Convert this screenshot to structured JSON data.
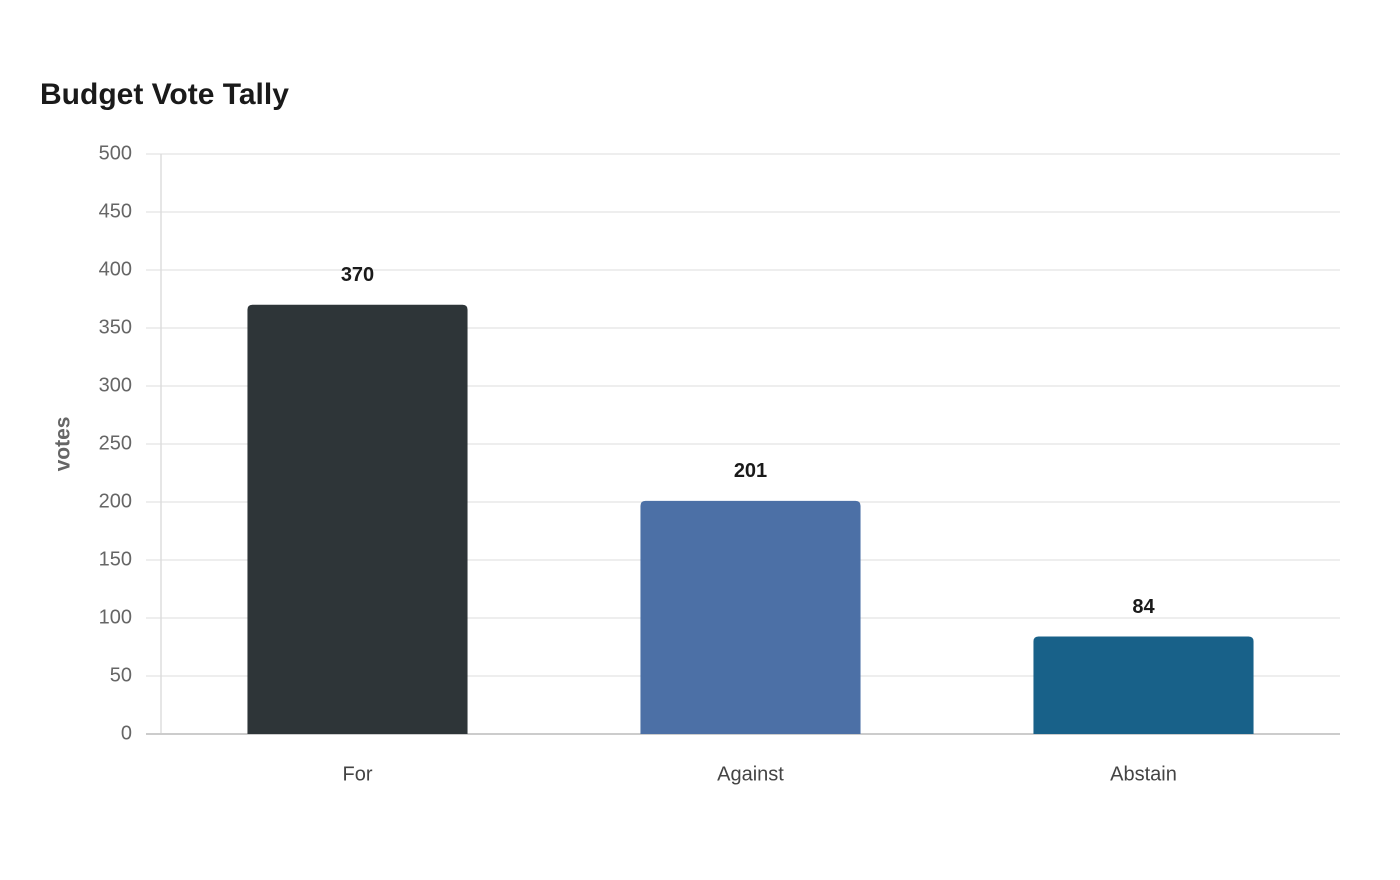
{
  "chart_data": {
    "type": "bar",
    "title": "Budget Vote Tally",
    "y_label": "votes",
    "categories": [
      "For",
      "Against",
      "Abstain"
    ],
    "values": [
      370,
      201,
      84
    ],
    "colors": [
      "#2e3538",
      "#4c70a6",
      "#186189"
    ],
    "ylim": [
      0,
      500
    ],
    "yticks": [
      0,
      50,
      100,
      150,
      200,
      250,
      300,
      350,
      400,
      450,
      500
    ],
    "grid": true
  }
}
